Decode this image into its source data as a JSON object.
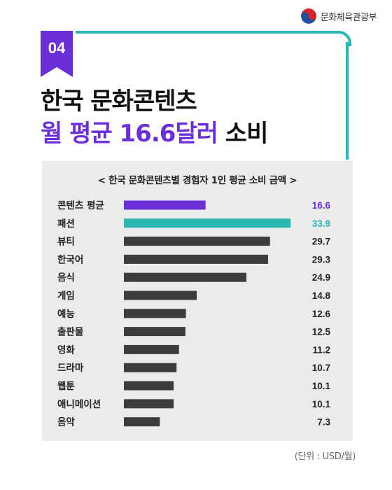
{
  "header": {
    "ministry_name": "문화체육관광부"
  },
  "badge": {
    "number": "04"
  },
  "headline": {
    "line1": "한국 문화콘텐츠",
    "line2_highlight": "월 평균 16.6달러",
    "line2_tail": " 소비"
  },
  "colors": {
    "accent_purple": "#6a2fd8",
    "accent_teal": "#2bb8b2",
    "bar_default": "#3c3c3c",
    "panel_bg": "#ebebeb"
  },
  "chart_data": {
    "type": "bar",
    "orientation": "horizontal",
    "title": "< 한국 문화콘텐츠별 경험자 1인 평균 소비 금액 >",
    "categories": [
      "콘텐츠 평균",
      "패션",
      "뷰티",
      "한국어",
      "음식",
      "게임",
      "예능",
      "출판물",
      "영화",
      "드라마",
      "웹툰",
      "애니메이션",
      "음악"
    ],
    "values": [
      16.6,
      33.9,
      29.7,
      29.3,
      24.9,
      14.8,
      12.6,
      12.5,
      11.2,
      10.7,
      10.1,
      10.1,
      7.3
    ],
    "value_labels": [
      "16.6",
      "33.9",
      "29.7",
      "29.3",
      "24.9",
      "14.8",
      "12.6",
      "12.5",
      "11.2",
      "10.7",
      "10.1",
      "10.1",
      "7.3"
    ],
    "highlights": {
      "콘텐츠 평균": "#6a2fd8",
      "패션": "#2bb8b2"
    },
    "xlim": [
      0,
      34
    ],
    "grid": false,
    "legend": "none"
  },
  "footer": {
    "unit_note": "(단위 : USD/월)"
  }
}
